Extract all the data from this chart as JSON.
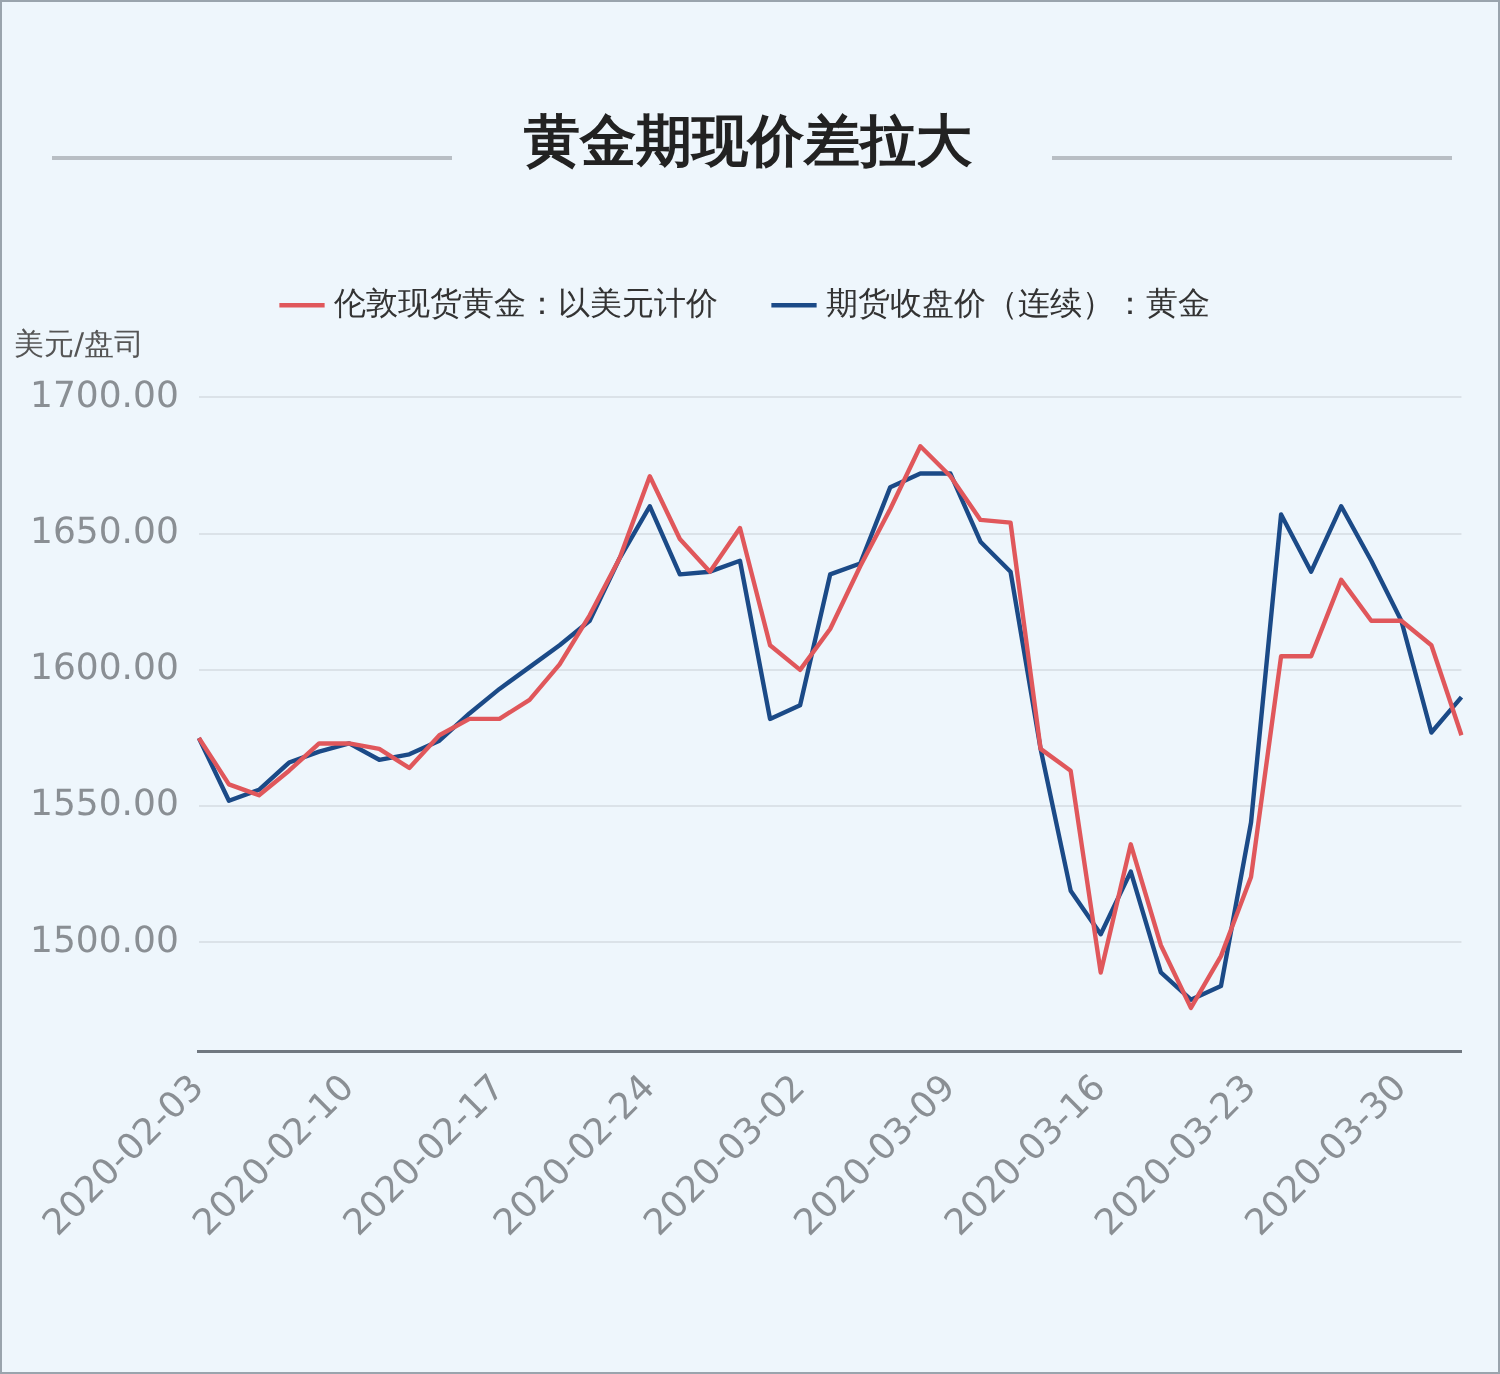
{
  "chart_data": {
    "type": "line",
    "title": "黄金期现价差拉大",
    "ylabel": "美元/盘司",
    "categories": [
      "2020-02-03",
      null,
      null,
      null,
      null,
      "2020-02-10",
      null,
      null,
      null,
      null,
      "2020-02-17",
      null,
      null,
      null,
      null,
      "2020-02-24",
      null,
      null,
      null,
      null,
      "2020-03-02",
      null,
      null,
      null,
      null,
      "2020-03-09",
      null,
      null,
      null,
      null,
      "2020-03-16",
      null,
      null,
      null,
      null,
      "2020-03-23",
      null,
      null,
      null,
      null,
      "2020-03-30",
      null,
      null
    ],
    "series": [
      {
        "name": "伦敦现货黄金：以美元计价",
        "color": "#e0575b",
        "values": [
          1575,
          1558,
          1554,
          1563,
          1573,
          1573,
          1571,
          1564,
          1576,
          1582,
          1582,
          1589,
          1602,
          1620,
          1641,
          1671,
          1648,
          1636,
          1652,
          1609,
          1600,
          1615,
          1638,
          1659,
          1682,
          1671,
          1655,
          1654,
          1571,
          1563,
          1489,
          1536,
          1499,
          1476,
          1495,
          1524,
          1605,
          1605,
          1633,
          1618,
          1618,
          1609,
          1576
        ]
      },
      {
        "name": "期货收盘价（连续）：黄金",
        "color": "#1b4a87",
        "values": [
          1575,
          1552,
          1556,
          1566,
          1570,
          1573,
          1567,
          1569,
          1574,
          1584,
          1593,
          1601,
          1609,
          1618,
          1641,
          1660,
          1635,
          1636,
          1640,
          1582,
          1587,
          1635,
          1639,
          1667,
          1672,
          1672,
          1647,
          1636,
          1571,
          1519,
          1503,
          1526,
          1489,
          1479,
          1484,
          1544,
          1657,
          1636,
          1660,
          1640,
          1618,
          1577,
          1590
        ]
      }
    ],
    "ylim": [
      1460,
      1700
    ],
    "yticks": [
      {
        "value": 1500,
        "label": "1500.00"
      },
      {
        "value": 1550,
        "label": "1550.00"
      },
      {
        "value": 1600,
        "label": "1600.00"
      },
      {
        "value": 1650,
        "label": "1650.00"
      },
      {
        "value": 1700,
        "label": "1700.00"
      }
    ],
    "grid": "y",
    "legend": "top",
    "marker": "none",
    "line_style": "solid"
  }
}
